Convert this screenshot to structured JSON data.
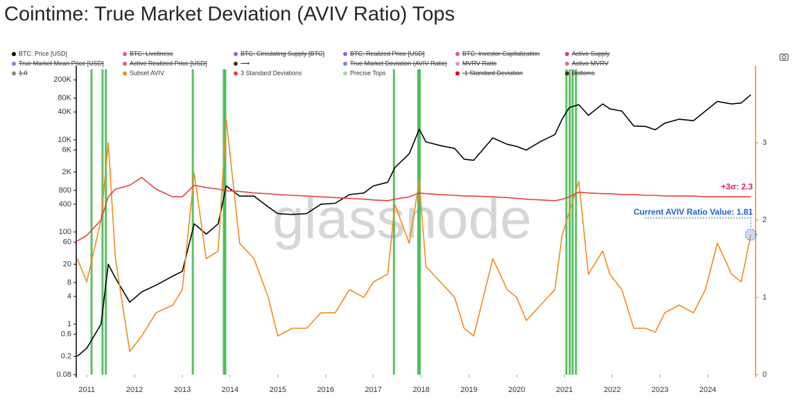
{
  "chart_data": {
    "type": "line",
    "title": "Cointime: True Market Deviation (AVIV Ratio) Tops",
    "watermark": "glassnode",
    "x": [
      2010.8,
      2011.0,
      2011.3,
      2011.45,
      2011.6,
      2011.9,
      2012.15,
      2012.45,
      2012.8,
      2013.0,
      2013.25,
      2013.5,
      2013.75,
      2013.92,
      2014.2,
      2014.5,
      2014.8,
      2015.0,
      2015.3,
      2015.6,
      2015.9,
      2016.2,
      2016.5,
      2016.8,
      2017.0,
      2017.3,
      2017.45,
      2017.75,
      2017.96,
      2018.1,
      2018.4,
      2018.7,
      2018.9,
      2019.1,
      2019.5,
      2019.8,
      2020.0,
      2020.2,
      2020.5,
      2020.8,
      2020.95,
      2021.1,
      2021.3,
      2021.5,
      2021.8,
      2021.95,
      2022.2,
      2022.45,
      2022.7,
      2022.9,
      2023.1,
      2023.4,
      2023.7,
      2023.95,
      2024.2,
      2024.5,
      2024.7,
      2024.9
    ],
    "series": [
      {
        "name": "BTC: Price [USD]",
        "color": "#000000",
        "axis": "y",
        "values": [
          0.2,
          0.3,
          1,
          20,
          10,
          3,
          5,
          7,
          11,
          14,
          150,
          90,
          150,
          1000,
          600,
          600,
          350,
          250,
          240,
          250,
          400,
          420,
          650,
          700,
          1000,
          1200,
          2500,
          5000,
          17000,
          9000,
          7500,
          6500,
          3800,
          3600,
          11000,
          8000,
          7200,
          6000,
          9200,
          13000,
          28000,
          50000,
          58000,
          34000,
          60000,
          47000,
          42000,
          20000,
          19500,
          16500,
          23000,
          28000,
          26000,
          42000,
          68000,
          60000,
          63000,
          95000
        ]
      },
      {
        "name": "Subset AVIV",
        "color": "#f28a1a",
        "axis": "y2",
        "values": [
          1.5,
          1.2,
          2.0,
          3.0,
          1.5,
          0.3,
          0.5,
          0.8,
          0.9,
          1.1,
          2.6,
          1.5,
          1.6,
          3.3,
          1.7,
          1.5,
          1.0,
          0.5,
          0.6,
          0.6,
          0.8,
          0.8,
          1.1,
          1.0,
          1.2,
          1.3,
          2.2,
          1.7,
          2.5,
          1.4,
          1.2,
          1.0,
          0.6,
          0.5,
          1.5,
          1.1,
          1.0,
          0.7,
          0.9,
          1.1,
          1.8,
          2.1,
          2.5,
          1.3,
          1.6,
          1.3,
          1.1,
          0.6,
          0.6,
          0.55,
          0.8,
          0.9,
          0.8,
          1.1,
          1.7,
          1.3,
          1.2,
          1.81
        ]
      },
      {
        "name": "3 Standard Deviations",
        "color": "#e8413b",
        "axis": "y2",
        "values": [
          1.73,
          1.8,
          2.0,
          2.3,
          2.4,
          2.45,
          2.55,
          2.4,
          2.3,
          2.3,
          2.45,
          2.42,
          2.4,
          2.38,
          2.37,
          2.35,
          2.34,
          2.33,
          2.32,
          2.31,
          2.3,
          2.29,
          2.28,
          2.27,
          2.26,
          2.25,
          2.27,
          2.3,
          2.35,
          2.34,
          2.33,
          2.32,
          2.31,
          2.31,
          2.3,
          2.29,
          2.28,
          2.27,
          2.26,
          2.25,
          2.27,
          2.3,
          2.36,
          2.35,
          2.34,
          2.34,
          2.33,
          2.33,
          2.32,
          2.32,
          2.31,
          2.31,
          2.31,
          2.3,
          2.3,
          2.3,
          2.3,
          2.3
        ]
      }
    ],
    "precise_tops": {
      "name": "Precise Tops",
      "color": "#3cb54a",
      "legend_color": "#9bd9a8",
      "x": [
        2011.1,
        2011.33,
        2011.4,
        2013.22,
        2013.87,
        2013.9,
        2017.43,
        2017.94,
        2017.97,
        2021.04,
        2021.11,
        2021.17,
        2021.24
      ]
    },
    "hidden_series": [
      {
        "name": "BTC: Liveliness",
        "color": "#e0607e"
      },
      {
        "name": "BTC: Circulating Supply [BTC]",
        "color": "#7b68ee"
      },
      {
        "name": "BTC: Realized Price [USD]",
        "color": "#7b68ee"
      },
      {
        "name": "BTC: Investor Capitalization",
        "color": "#e0607e"
      },
      {
        "name": "Active Supply",
        "color": "#d4456a"
      },
      {
        "name": "True Market Mean Price [USD]",
        "color": "#6a8fd8"
      },
      {
        "name": "Active Realized Price [USD]",
        "color": "#e0607e"
      },
      {
        "name": "⟶",
        "color": "#333333"
      },
      {
        "name": "True Market Deviation (AVIV Ratio)",
        "color": "#6a8fd8"
      },
      {
        "name": "MVRV Ratio",
        "color": "#c9a0dc"
      },
      {
        "name": "Active MVRV",
        "color": "#e07090"
      },
      {
        "name": "1.0",
        "color": "#888888"
      },
      {
        "name": "-1 Standard Deviation",
        "color": "#dd0000"
      },
      {
        "name": "Bottoms",
        "color": "#333333"
      }
    ],
    "annotations": [
      {
        "text": "+3σ: 2.3",
        "color": "#e0205a"
      },
      {
        "text": "Current AVIV Ratio Value: 1.81",
        "color": "#1e5fd8"
      }
    ],
    "ylog": true,
    "xlim": [
      2010.78,
      2025.0
    ],
    "xticks": [
      2011,
      2012,
      2013,
      2014,
      2015,
      2016,
      2017,
      2018,
      2019,
      2020,
      2021,
      2022,
      2023,
      2024
    ],
    "ylim": [
      0.08,
      340000
    ],
    "yticks": [
      0.08,
      0.2,
      0.6,
      1,
      4,
      8,
      20,
      60,
      100,
      400,
      800,
      {
        "value": 2000,
        "label": "2K"
      },
      {
        "value": 6000,
        "label": "6K"
      },
      {
        "value": 10000,
        "label": "10K"
      },
      {
        "value": 40000,
        "label": "40K"
      },
      {
        "value": 80000,
        "label": "80K"
      },
      {
        "value": 200000,
        "label": "200K"
      }
    ],
    "y2lim": [
      0,
      3.95
    ],
    "y2ticks": [
      0,
      1,
      2,
      3
    ]
  }
}
